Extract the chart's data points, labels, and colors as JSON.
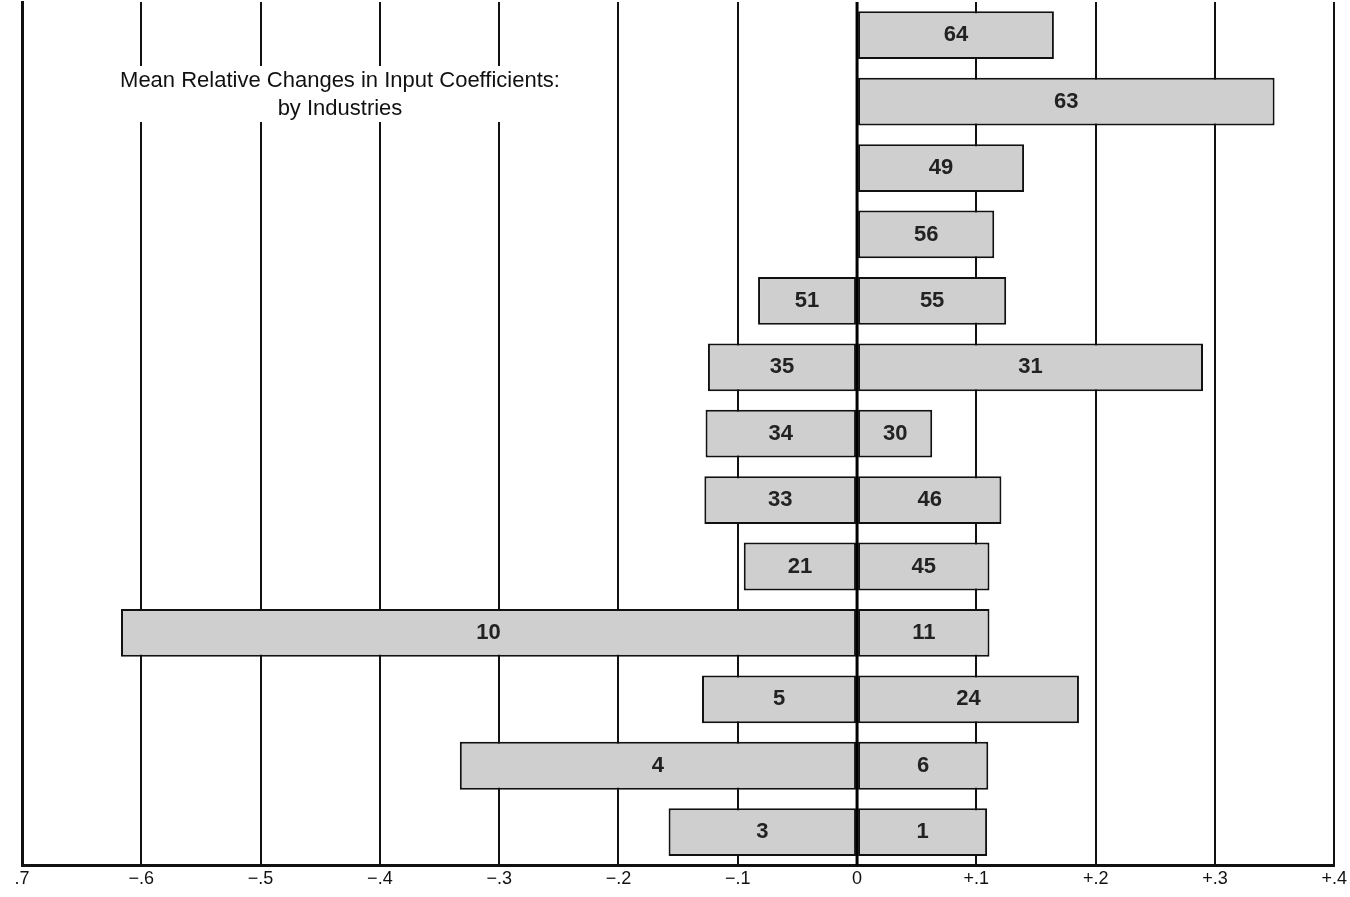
{
  "chart_data": {
    "type": "bar",
    "orientation": "horizontal",
    "title": "Mean Relative Changes in Input Coefficients:\nby Industries",
    "categories": [
      null,
      null,
      null,
      null,
      null,
      null,
      null,
      null,
      null,
      null,
      null,
      null,
      null
    ],
    "series": [
      {
        "color": "#cfcfcf",
        "values": [
          null,
          null,
          null,
          null,
          -0.083,
          -0.125,
          -0.127,
          -0.128,
          -0.095,
          -0.617,
          -0.13,
          -0.333,
          -0.158
        ]
      },
      {
        "color": "#cfcfcf",
        "values": [
          0.165,
          0.35,
          0.14,
          0.115,
          0.125,
          0.29,
          0.063,
          0.121,
          0.111,
          0.111,
          0.186,
          0.11,
          0.109
        ]
      }
    ],
    "stacked": true,
    "annotations": [
      "64",
      "63",
      "49",
      "56",
      "51",
      "55",
      "35",
      "31",
      "34",
      "30",
      "33",
      "46",
      "21",
      "45",
      "10",
      "11",
      "5",
      "24",
      "4",
      "6",
      "3",
      "1"
    ],
    "xlim": [
      -0.7,
      0.4
    ],
    "xticks": [
      {
        "value": -0.7,
        "label": ".7"
      },
      {
        "value": -0.6,
        "label": "−.6"
      },
      {
        "value": -0.5,
        "label": "−.5"
      },
      {
        "value": -0.4,
        "label": "−.4"
      },
      {
        "value": -0.3,
        "label": "−.3"
      },
      {
        "value": -0.2,
        "label": "−.2"
      },
      {
        "value": -0.1,
        "label": "−.1"
      },
      0,
      {
        "value": 0.1,
        "label": "+.1"
      },
      {
        "value": 0.2,
        "label": "+.2"
      },
      {
        "value": 0.3,
        "label": "+.3"
      },
      {
        "value": 0.4,
        "label": "+.4"
      }
    ],
    "grid": "x"
  }
}
